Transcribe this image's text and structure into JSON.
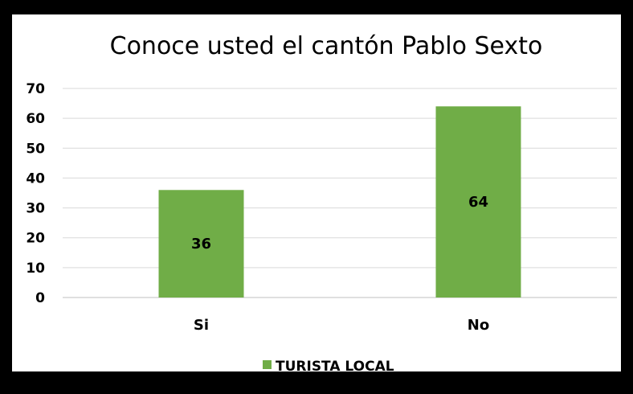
{
  "chart_data": {
    "type": "bar",
    "title": "Conoce usted el cantón  Pablo Sexto",
    "categories": [
      "Si",
      "No"
    ],
    "series": [
      {
        "name": "TURISTA LOCAL",
        "values": [
          36,
          64
        ]
      }
    ],
    "ylim": [
      0,
      70
    ],
    "yticks": [
      0,
      10,
      20,
      30,
      40,
      50,
      60,
      70
    ],
    "grid": true,
    "legend": "bottom",
    "bar_color": "#70ad47"
  }
}
